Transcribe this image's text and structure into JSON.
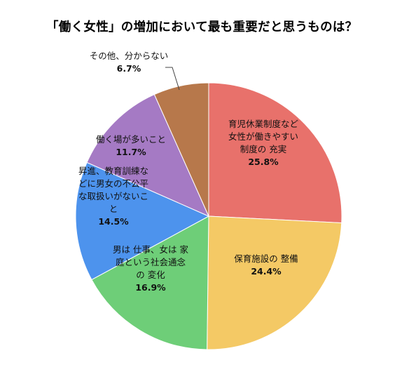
{
  "chart_data": {
    "type": "pie",
    "title": "「働く女性」の増加において最も重要だと思うものは？",
    "slices": [
      {
        "label_lines": [
          "育児休業制度など",
          "女性が働きやすい",
          "制度の 充実"
        ],
        "value": 25.8,
        "value_text": "25.8%",
        "color": "#e8716b"
      },
      {
        "label_lines": [
          "保育施設の 整備"
        ],
        "value": 24.4,
        "value_text": "24.4%",
        "color": "#f4c965"
      },
      {
        "label_lines": [
          "男は 仕事、女は 家",
          "庭という社会通念",
          "の 変化"
        ],
        "value": 16.9,
        "value_text": "16.9%",
        "color": "#6ece78"
      },
      {
        "label_lines": [
          "昇進、教育訓練な",
          "どに男女の不公平",
          "な取扱いがないこ",
          "と"
        ],
        "value": 14.5,
        "value_text": "14.5%",
        "color": "#4d93ed"
      },
      {
        "label_lines": [
          "働く場が多いこと"
        ],
        "value": 11.7,
        "value_text": "11.7%",
        "color": "#a57ac4"
      },
      {
        "label_lines": [
          "その他、分からない"
        ],
        "value": 6.7,
        "value_text": "6.7%",
        "color": "#b7784b"
      }
    ],
    "start_angle": "12 o'clock",
    "direction": "clockwise",
    "legend": "none"
  }
}
